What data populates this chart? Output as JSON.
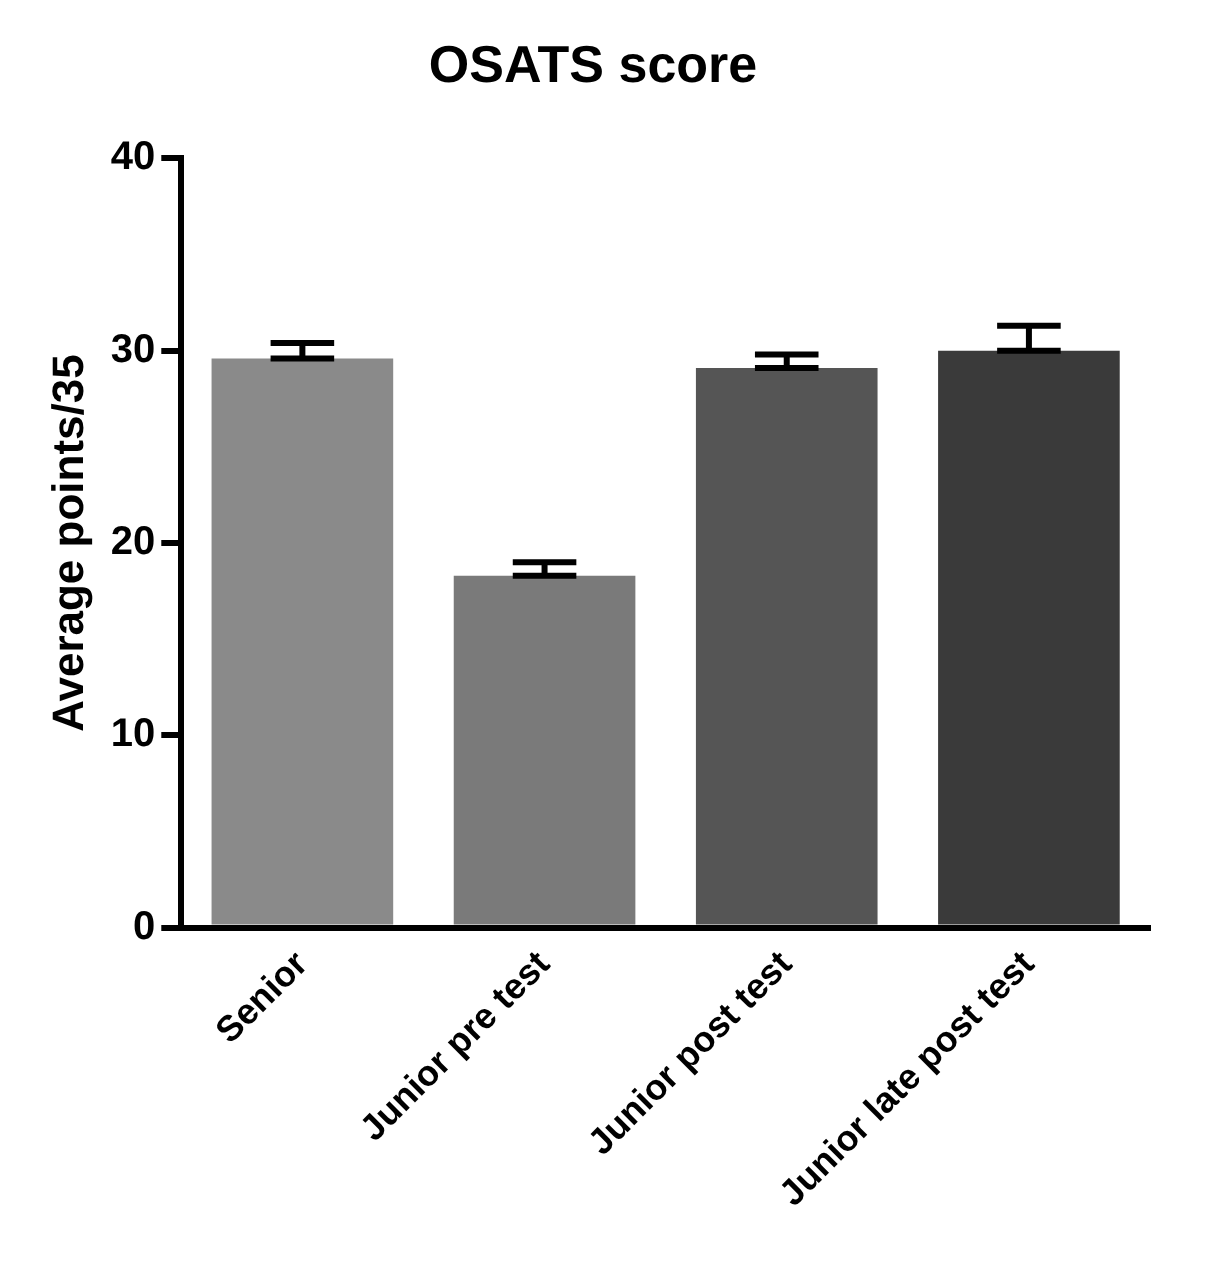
{
  "chart_data": {
    "type": "bar",
    "title": "OSATS score",
    "ylabel": "Average points/35",
    "categories": [
      "Senior",
      "Junior pre test",
      "Junior post test",
      "Junior late post test"
    ],
    "values": [
      29.6,
      18.3,
      29.1,
      30.0
    ],
    "errors": [
      [
        29.6,
        30.4
      ],
      [
        18.3,
        19.0
      ],
      [
        29.1,
        29.8
      ],
      [
        30.0,
        31.3
      ]
    ],
    "colors": [
      "#8a8a8a",
      "#7a7a7a",
      "#555555",
      "#3a3a3a"
    ],
    "ylim": [
      0,
      40
    ],
    "yticks": [
      0,
      10,
      20,
      30,
      40
    ],
    "grid": false,
    "legend": false
  }
}
